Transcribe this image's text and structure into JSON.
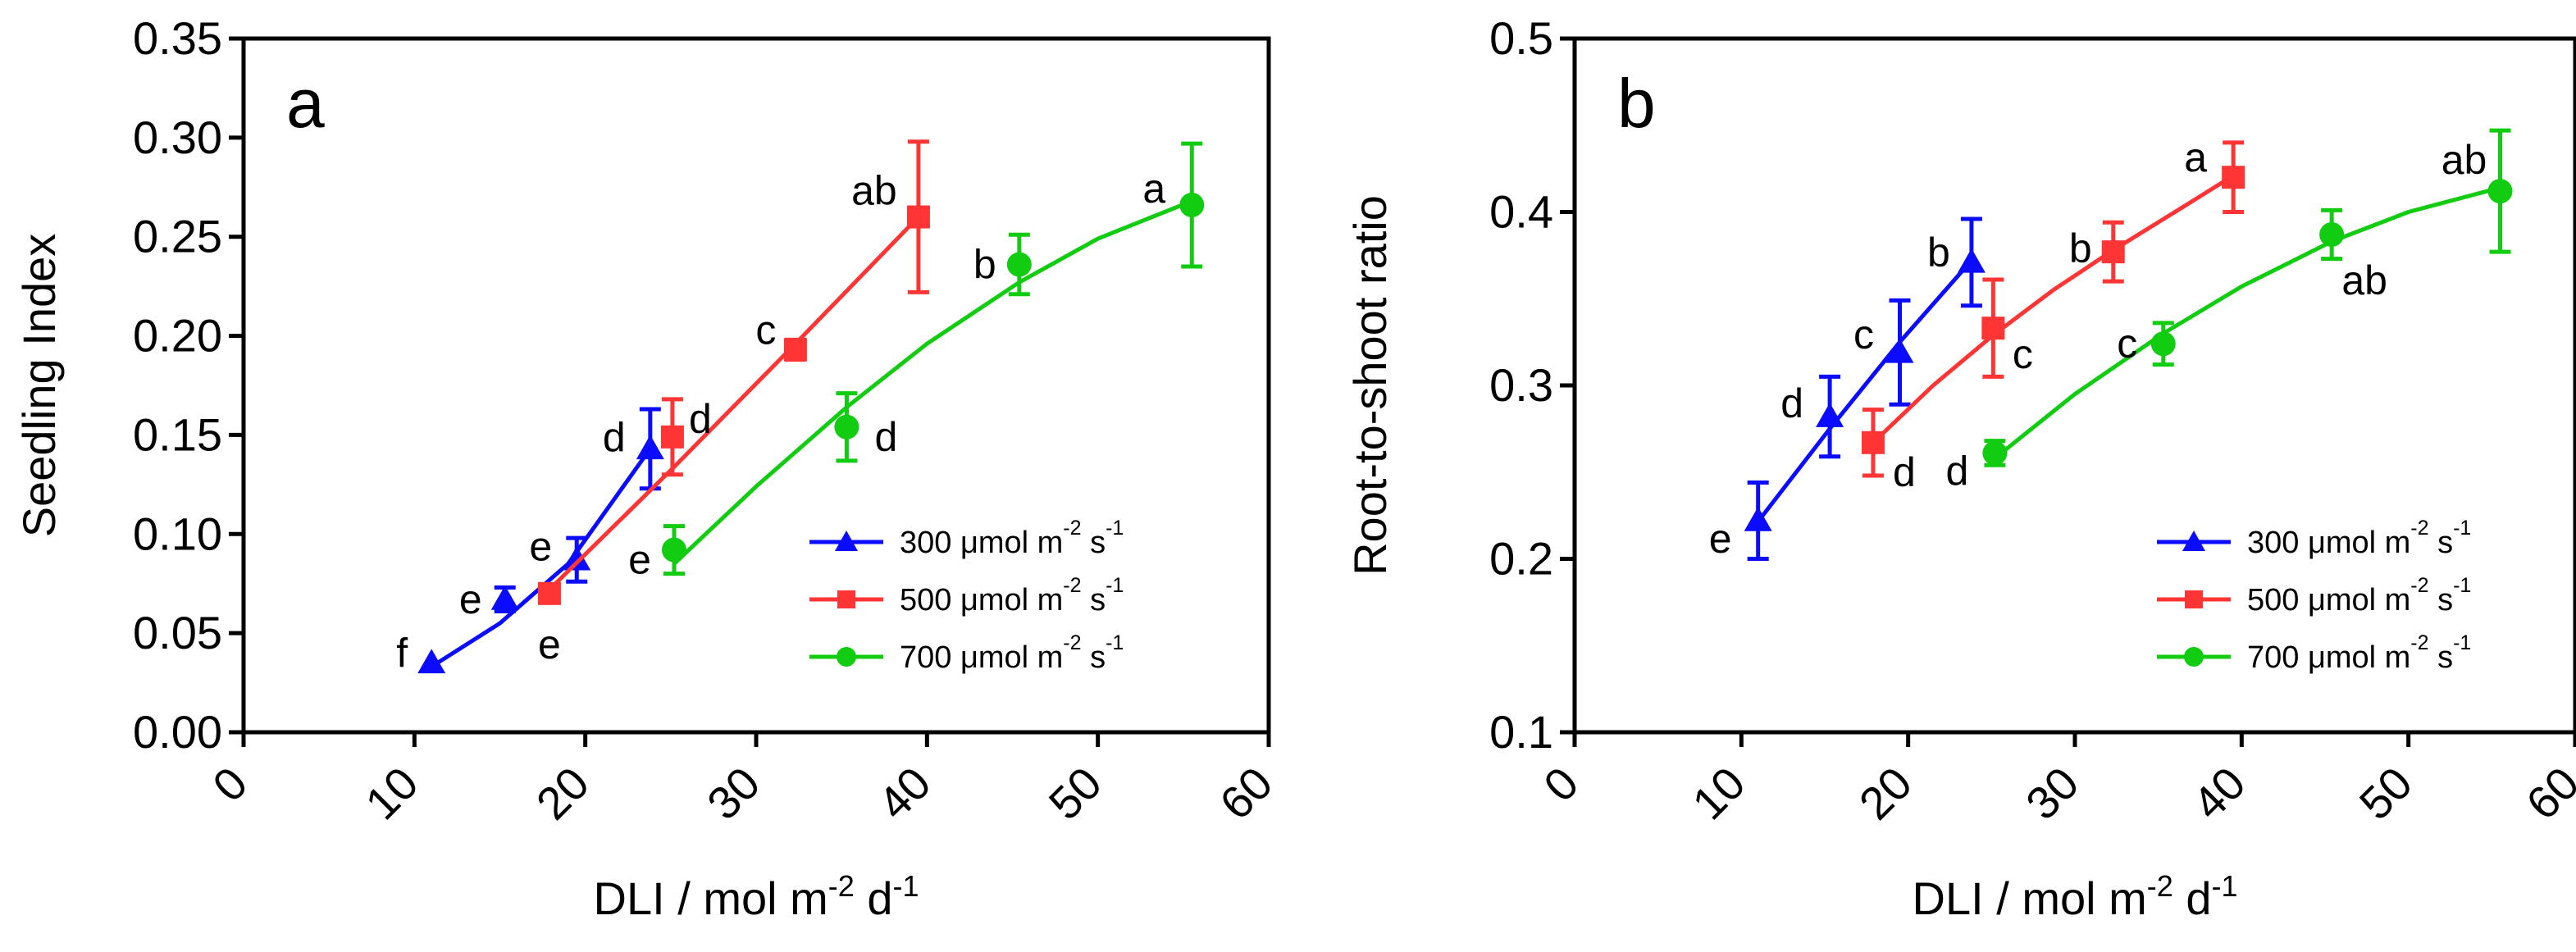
{
  "colors": {
    "300": "#0b0bff",
    "500": "#ff3434",
    "700": "#11cc11"
  },
  "chart_data": [
    {
      "type": "line",
      "panel_letter": "a",
      "ylabel": "Seedling Index",
      "xlabel": {
        "base": "DLI / mol m",
        "sup1": "-2",
        "mid": " d",
        "sup2": "-1"
      },
      "xlim": [
        0,
        60
      ],
      "ylim": [
        0,
        0.35
      ],
      "xticks": [
        0,
        10,
        20,
        30,
        40,
        50,
        60
      ],
      "yticks": [
        0.0,
        0.05,
        0.1,
        0.15,
        0.2,
        0.25,
        0.3,
        0.35
      ],
      "ytick_labels": [
        "0.00",
        "0.05",
        "0.10",
        "0.15",
        "0.20",
        "0.25",
        "0.30",
        "0.35"
      ],
      "grid": false,
      "legend_position": "bottom-right",
      "series": [
        {
          "name": "300 μmol m-2 s-1",
          "legend": {
            "base": "300 μmol m",
            "sup1": "-2",
            "mid": " s",
            "sup2": "-1"
          },
          "key": "300",
          "marker": "triangle",
          "x": [
            11,
            15.3,
            19.5,
            23.8
          ],
          "y": [
            0.035,
            0.067,
            0.087,
            0.143
          ],
          "err": [
            0,
            0.006,
            0.011,
            0.02
          ],
          "labels": [
            "f",
            "e",
            "e",
            "d"
          ],
          "fit": [
            [
              10.8,
              0.032
            ],
            [
              15,
              0.055
            ],
            [
              19,
              0.085
            ],
            [
              23.8,
              0.143
            ]
          ]
        },
        {
          "name": "500 μmol m-2 s-1",
          "legend": {
            "base": "500 μmol m",
            "sup1": "-2",
            "mid": " s",
            "sup2": "-1"
          },
          "key": "500",
          "marker": "square",
          "x": [
            17.9,
            25.1,
            32.3,
            39.5
          ],
          "y": [
            0.07,
            0.149,
            0.193,
            0.26
          ],
          "err": [
            0,
            0.019,
            0.005,
            0.038
          ],
          "labels": [
            "e",
            "d",
            "c",
            "ab"
          ],
          "fit": [
            [
              17.9,
              0.072
            ],
            [
              25.1,
              0.133
            ],
            [
              32.3,
              0.196
            ],
            [
              39.5,
              0.26
            ]
          ]
        },
        {
          "name": "700 μmol m-2 s-1",
          "legend": {
            "base": "700 μmol m",
            "sup1": "-2",
            "mid": " s",
            "sup2": "-1"
          },
          "key": "700",
          "marker": "circle",
          "x": [
            25.2,
            35.3,
            45.4,
            55.5
          ],
          "y": [
            0.092,
            0.154,
            0.236,
            0.266
          ],
          "err": [
            0.012,
            0.017,
            0.015,
            0.031
          ],
          "labels": [
            "e",
            "d",
            "b",
            "a"
          ],
          "fit": [
            [
              25.2,
              0.085
            ],
            [
              30,
              0.124
            ],
            [
              35.3,
              0.164
            ],
            [
              40,
              0.196
            ],
            [
              45.4,
              0.227
            ],
            [
              50,
              0.249
            ],
            [
              55.5,
              0.268
            ]
          ]
        }
      ]
    },
    {
      "type": "line",
      "panel_letter": "b",
      "ylabel": "Root-to-shoot ratio",
      "xlabel": {
        "base": "DLI / mol m",
        "sup1": "-2",
        "mid": " d",
        "sup2": "-1"
      },
      "xlim": [
        0,
        60
      ],
      "ylim": [
        0.1,
        0.5
      ],
      "xticks": [
        0,
        10,
        20,
        30,
        40,
        50,
        60
      ],
      "yticks": [
        0.1,
        0.2,
        0.3,
        0.4,
        0.5
      ],
      "ytick_labels": [
        "0.1",
        "0.2",
        "0.3",
        "0.4",
        "0.5"
      ],
      "grid": false,
      "legend_position": "bottom-right",
      "series": [
        {
          "name": "300 μmol m-2 s-1",
          "legend": {
            "base": "300 μmol m",
            "sup1": "-2",
            "mid": " s",
            "sup2": "-1"
          },
          "key": "300",
          "marker": "triangle",
          "x": [
            11,
            15.3,
            19.5,
            23.8
          ],
          "y": [
            0.222,
            0.282,
            0.319,
            0.371
          ],
          "err": [
            0.022,
            0.023,
            0.03,
            0.025
          ],
          "labels": [
            "e",
            "d",
            "c",
            "b"
          ],
          "fit": [
            [
              10.8,
              0.219
            ],
            [
              15.3,
              0.275
            ],
            [
              19.5,
              0.325
            ],
            [
              23.8,
              0.372
            ]
          ]
        },
        {
          "name": "500 μmol m-2 s-1",
          "legend": {
            "base": "500 μmol m",
            "sup1": "-2",
            "mid": " s",
            "sup2": "-1"
          },
          "key": "500",
          "marker": "square",
          "x": [
            17.9,
            25.1,
            32.3,
            39.5
          ],
          "y": [
            0.267,
            0.333,
            0.377,
            0.42
          ],
          "err": [
            0.019,
            0.028,
            0.017,
            0.02
          ],
          "labels": [
            "d",
            "c",
            "b",
            "a"
          ],
          "fit": [
            [
              17.9,
              0.267
            ],
            [
              21.5,
              0.3
            ],
            [
              25.1,
              0.329
            ],
            [
              28.7,
              0.355
            ],
            [
              32.3,
              0.378
            ],
            [
              36,
              0.4
            ],
            [
              39.5,
              0.421
            ]
          ]
        },
        {
          "name": "700 μmol m-2 s-1",
          "legend": {
            "base": "700 μmol m",
            "sup1": "-2",
            "mid": " s",
            "sup2": "-1"
          },
          "key": "700",
          "marker": "circle",
          "x": [
            25.2,
            35.3,
            45.4,
            55.5
          ],
          "y": [
            0.261,
            0.324,
            0.387,
            0.412
          ],
          "err": [
            0.007,
            0.012,
            0.014,
            0.035
          ],
          "labels": [
            "d",
            "c",
            "ab",
            "ab"
          ],
          "fit": [
            [
              25.2,
              0.258
            ],
            [
              30,
              0.295
            ],
            [
              35.3,
              0.33
            ],
            [
              40,
              0.357
            ],
            [
              45.4,
              0.383
            ],
            [
              50,
              0.4
            ],
            [
              55.5,
              0.414
            ]
          ]
        }
      ]
    }
  ]
}
